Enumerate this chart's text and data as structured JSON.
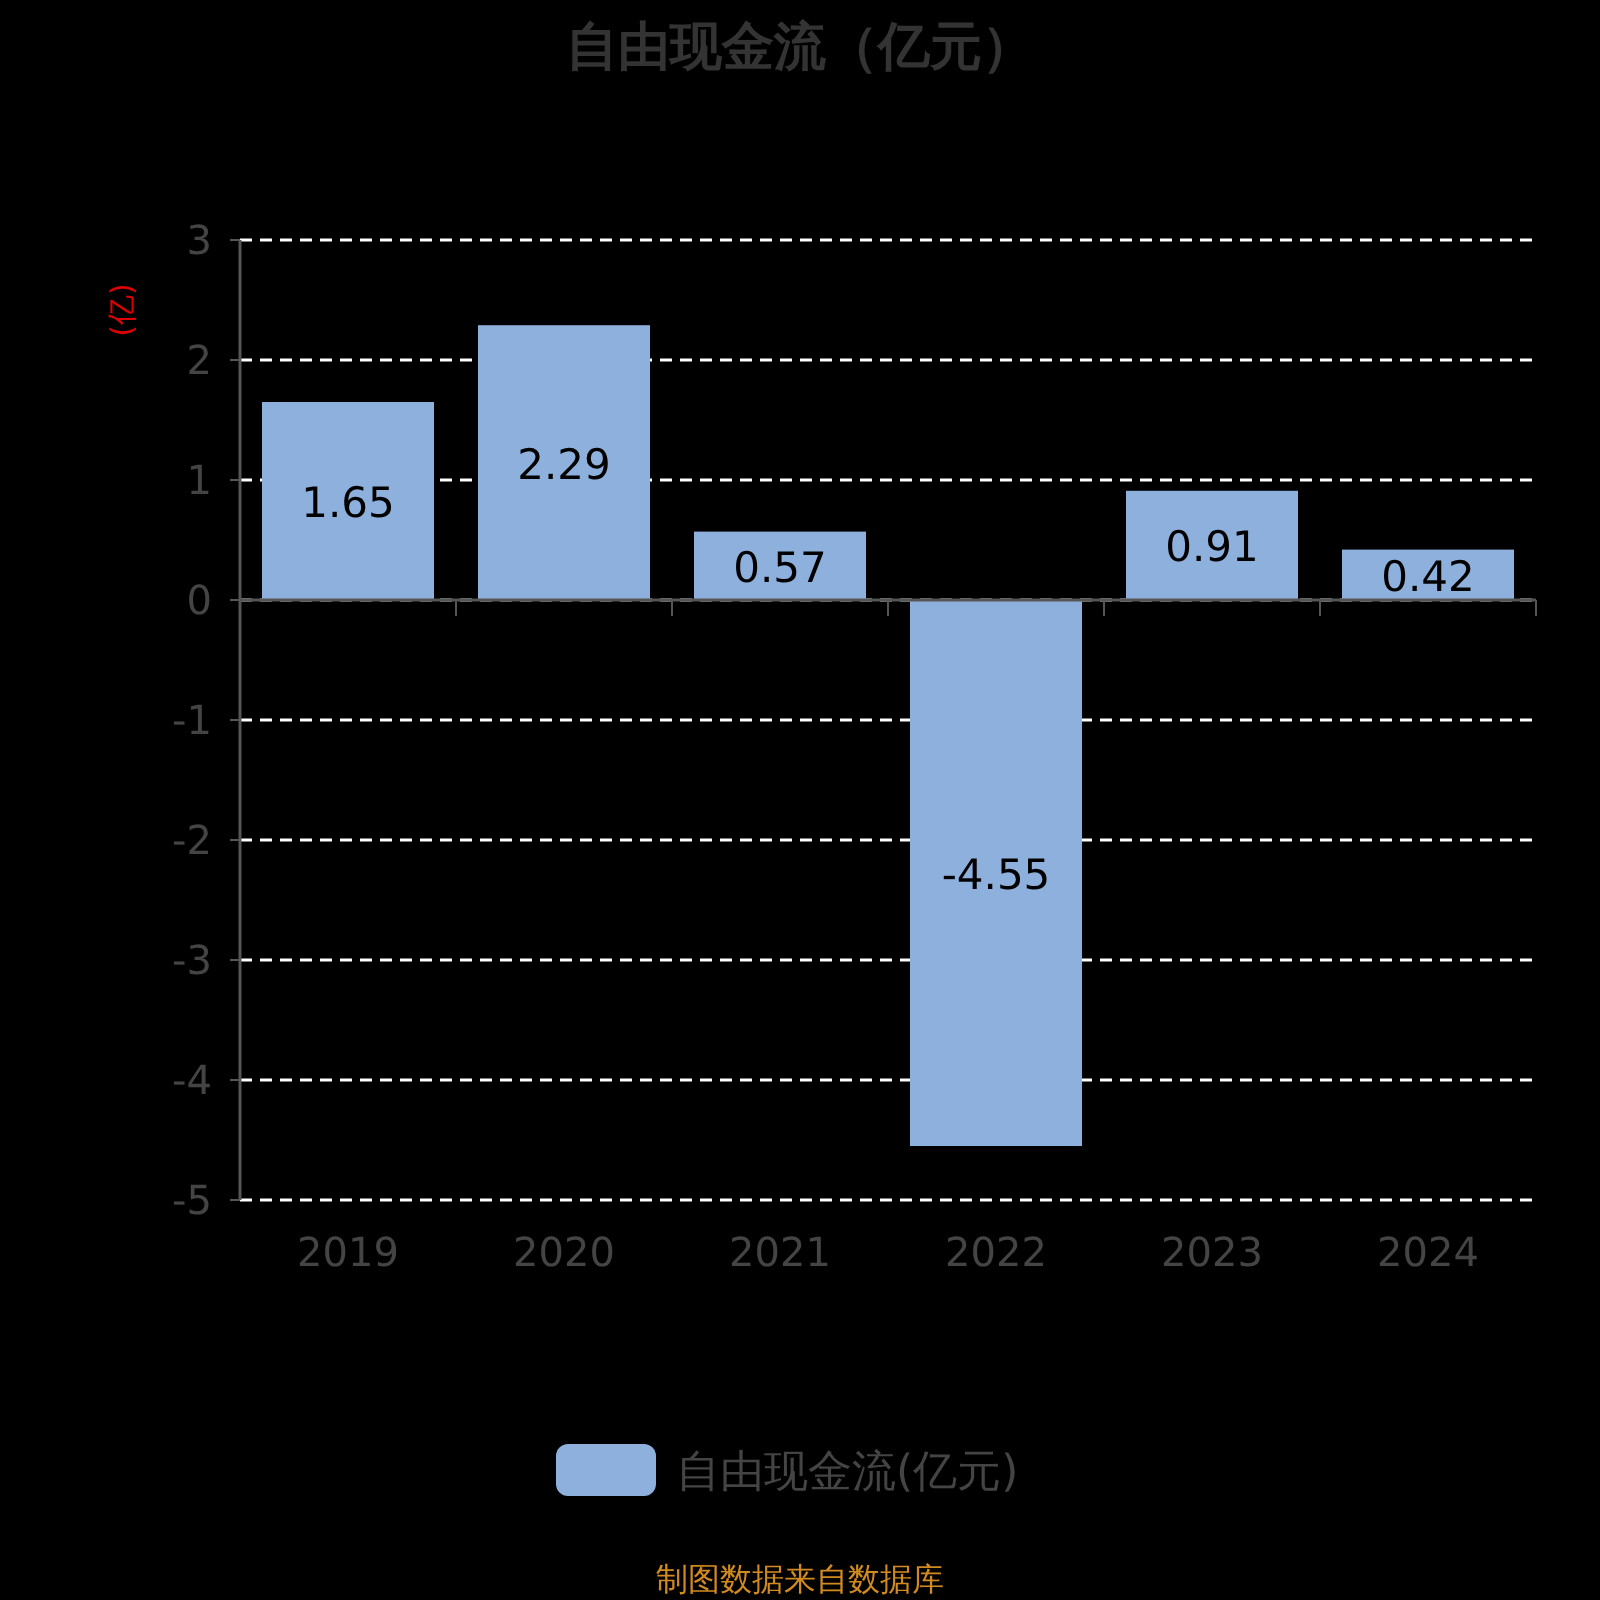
{
  "chart_data": {
    "type": "bar",
    "title": "自由现金流（亿元）",
    "ylabel": "(亿)",
    "categories": [
      "2019",
      "2020",
      "2021",
      "2022",
      "2023",
      "2024"
    ],
    "series": [
      {
        "name": "自由现金流(亿元)",
        "color": "#8eb0dc",
        "values": [
          1.65,
          2.29,
          0.57,
          -4.55,
          0.91,
          0.42
        ]
      }
    ],
    "ylim": [
      -5,
      3
    ],
    "yticks": [
      -5,
      -4,
      -3,
      -2,
      -1,
      0,
      1,
      2,
      3
    ],
    "grid": "y",
    "legend": "bottom",
    "data_labels": true,
    "annotations": [
      "制图数据来自数据库"
    ]
  }
}
